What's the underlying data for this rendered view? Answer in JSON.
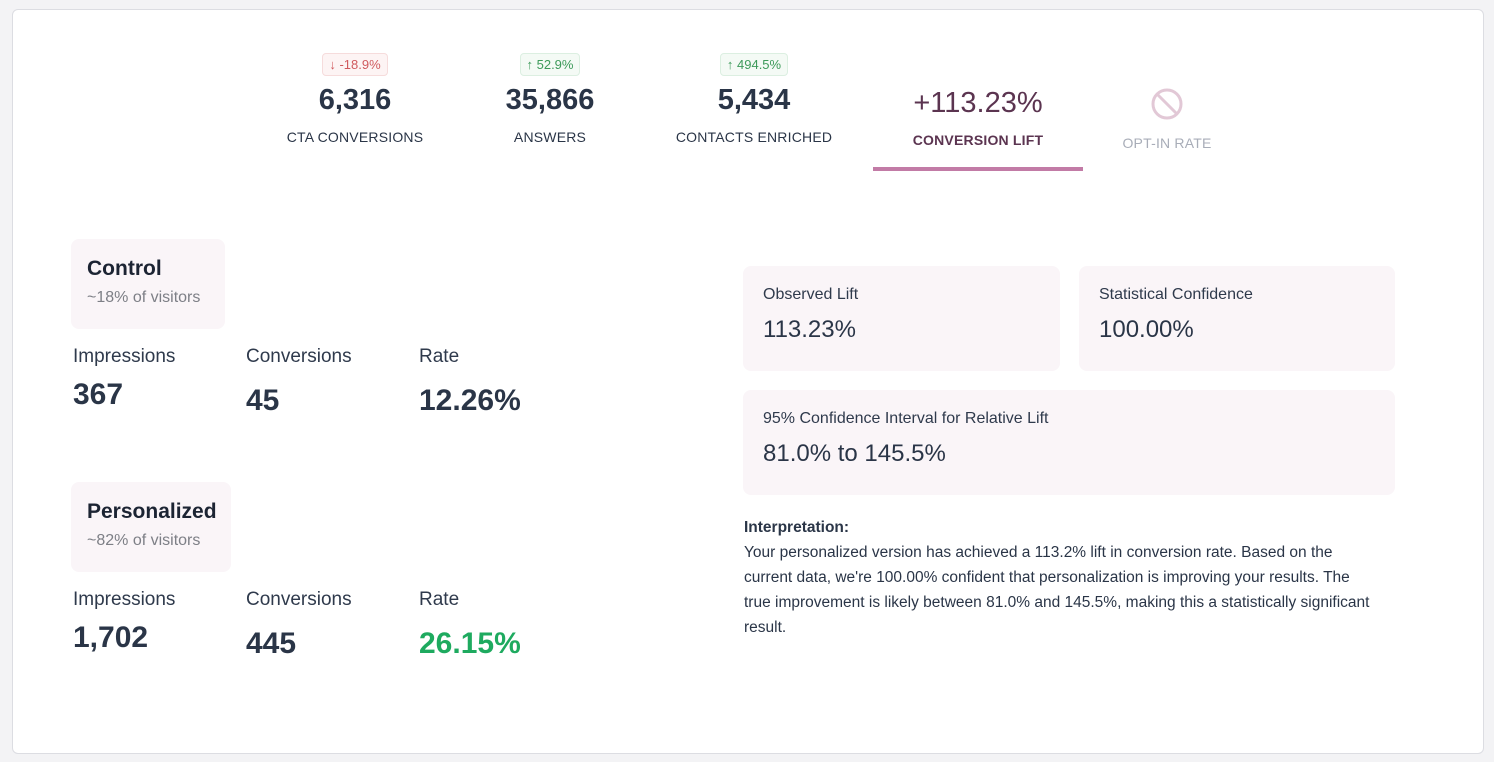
{
  "kpis": [
    {
      "badge": "↓ -18.9%",
      "badge_dir": "down",
      "value": "6,316",
      "label": "CTA CONVERSIONS"
    },
    {
      "badge": "↑ 52.9%",
      "badge_dir": "up",
      "value": "35,866",
      "label": "ANSWERS"
    },
    {
      "badge": "↑ 494.5%",
      "badge_dir": "up",
      "value": "5,434",
      "label": "CONTACTS ENRICHED"
    },
    {
      "value": "+113.23%",
      "label": "CONVERSION LIFT",
      "active": true
    },
    {
      "icon": "disabled-icon",
      "label": "OPT-IN RATE",
      "disabled": true
    }
  ],
  "control": {
    "title": "Control",
    "subtitle": "~18% of visitors",
    "impressions_label": "Impressions",
    "impressions": "367",
    "conversions_label": "Conversions",
    "conversions": "45",
    "rate_label": "Rate",
    "rate": "12.26%"
  },
  "personalized": {
    "title": "Personalized",
    "subtitle": "~82% of visitors",
    "impressions_label": "Impressions",
    "impressions": "1,702",
    "conversions_label": "Conversions",
    "conversions": "445",
    "rate_label": "Rate",
    "rate": "26.15%",
    "rate_color": "#1eaa5f"
  },
  "results": {
    "observed_label": "Observed Lift",
    "observed": "113.23%",
    "confidence_label": "Statistical Confidence",
    "confidence": "100.00%",
    "ci_label": "95% Confidence Interval for Relative Lift",
    "ci": "81.0% to 145.5%"
  },
  "interpretation": {
    "title": "Interpretation:",
    "text": "Your personalized version has achieved a 113.2% lift in conversion rate. Based on the current data, we're 100.00% confident that personalization is improving your results. The true improvement is likely between 81.0% and 145.5%, making this a statistically significant result."
  },
  "colors": {
    "accent": "#c27ba6",
    "lift_text": "#5b3450",
    "positive": "#1eaa5f",
    "negative": "#d05a5e"
  }
}
